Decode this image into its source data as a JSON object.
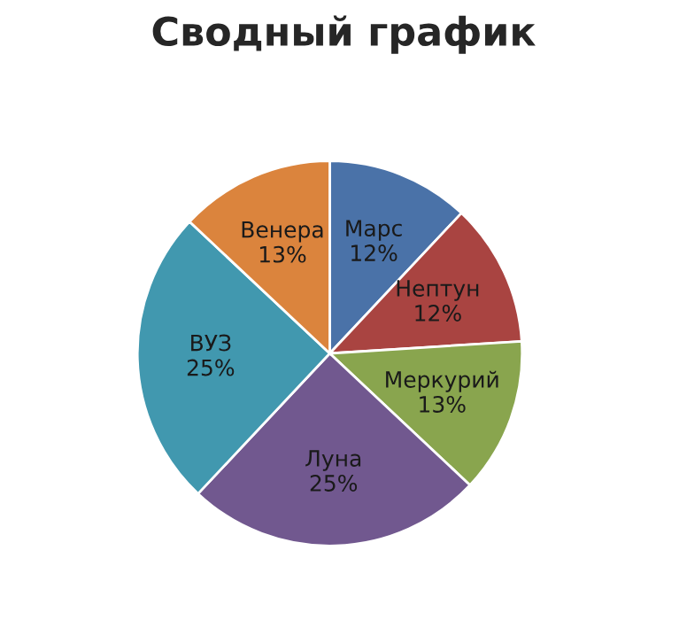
{
  "chart_data": {
    "type": "pie",
    "title": "Сводный график",
    "categories": [
      "Марс",
      "Нептун",
      "Меркурий",
      "Луна",
      "ВУЗ",
      "Венера"
    ],
    "values": [
      12,
      12,
      13,
      25,
      25,
      13
    ],
    "value_labels": [
      "12%",
      "12%",
      "13%",
      "25%",
      "25%",
      "13%"
    ],
    "colors": [
      "#4a72a8",
      "#a94441",
      "#89a54e",
      "#71588f",
      "#4198af",
      "#db843d"
    ],
    "legend": false
  }
}
